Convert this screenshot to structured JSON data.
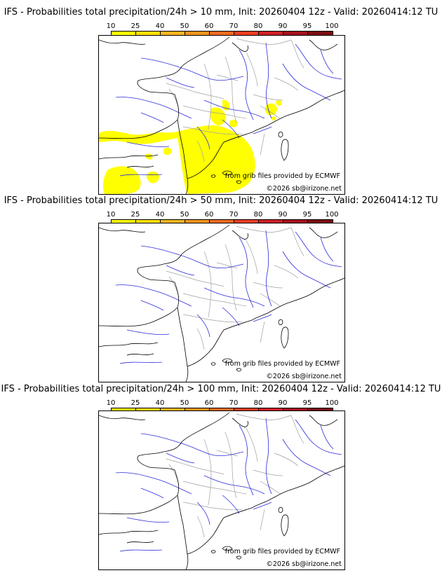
{
  "scale": {
    "labels": [
      "10",
      "25",
      "40",
      "50",
      "60",
      "70",
      "80",
      "90",
      "95",
      "100"
    ],
    "colors": [
      "#ffff00",
      "#fee000",
      "#f9b51e",
      "#f7941d",
      "#f36b21",
      "#ef3e23",
      "#d01f27",
      "#a7101e",
      "#7d0b12",
      "#520207"
    ]
  },
  "panels": [
    {
      "title": "IFS - Probabilities total precipitation/24h > 10 mm, Init: 20260404 12z - Valid: 20260414:12 TU",
      "source": "from grib files provided by ECMWF",
      "copyright": "©2026 sb@irizone.net",
      "has_precip": true
    },
    {
      "title": "IFS - Probabilities total precipitation/24h > 50 mm, Init: 20260404 12z - Valid: 20260414:12 TU",
      "source": "from grib files provided by ECMWF",
      "copyright": "©2026 sb@irizone.net",
      "has_precip": false
    },
    {
      "title": "IFS - Probabilities total precipitation/24h > 100 mm, Init: 20260404 12z - Valid: 20260414:12 TU",
      "source": "from grib files provided by ECMWF",
      "copyright": "©2026 sb@irizone.net",
      "has_precip": false
    }
  ],
  "colors": {
    "coast": "#000000",
    "river": "#2b2bdc",
    "border": "#a0a0a0",
    "precip": "#ffff00"
  }
}
